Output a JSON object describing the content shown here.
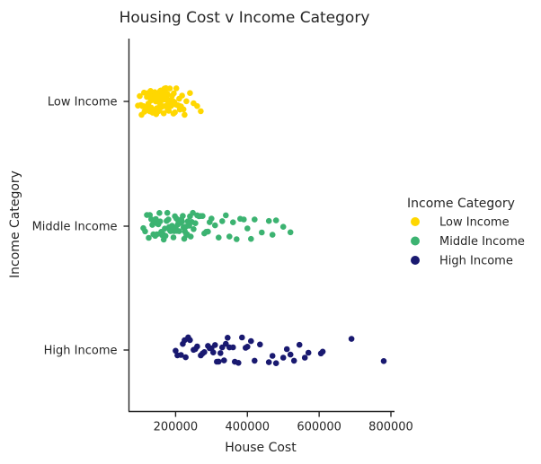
{
  "chart_data": {
    "type": "scatter",
    "title": "Housing Cost v Income Category",
    "xlabel": "House Cost",
    "ylabel": "Income Category",
    "xlim": [
      70000,
      810000
    ],
    "xticks": [
      200000,
      400000,
      600000,
      800000
    ],
    "xtick_labels": [
      "200000",
      "400000",
      "600000",
      "800000"
    ],
    "categories": [
      "Low Income",
      "Middle Income",
      "High Income"
    ],
    "grid": false,
    "legend": {
      "title": "Income Category",
      "placement": "right"
    },
    "series": [
      {
        "name": "Low Income",
        "color": "#FFD700",
        "category_index": 0,
        "x": [
          95000,
          100000,
          103000,
          105000,
          108000,
          110000,
          112000,
          113000,
          115000,
          117000,
          118000,
          120000,
          121000,
          122000,
          124000,
          125000,
          126000,
          127000,
          128000,
          129000,
          130000,
          131000,
          132000,
          133000,
          134000,
          135000,
          136000,
          137000,
          138000,
          139000,
          140000,
          141000,
          142000,
          143000,
          144000,
          145000,
          146000,
          147000,
          148000,
          149000,
          150000,
          151000,
          152000,
          153000,
          154000,
          155000,
          156000,
          157000,
          158000,
          159000,
          160000,
          161000,
          162000,
          163000,
          164000,
          165000,
          166000,
          167000,
          168000,
          169000,
          170000,
          171000,
          172000,
          173000,
          174000,
          175000,
          176000,
          177000,
          178000,
          179000,
          180000,
          181000,
          182000,
          183000,
          184000,
          185000,
          186000,
          187000,
          188000,
          190000,
          192000,
          194000,
          195000,
          196000,
          198000,
          200000,
          202000,
          205000,
          208000,
          210000,
          212000,
          215000,
          218000,
          222000,
          225000,
          230000,
          240000,
          250000,
          260000,
          270000
        ]
      },
      {
        "name": "Middle Income",
        "color": "#3CB371",
        "category_index": 1,
        "x": [
          110000,
          115000,
          120000,
          125000,
          128000,
          132000,
          135000,
          138000,
          140000,
          143000,
          145000,
          148000,
          150000,
          152000,
          155000,
          157000,
          160000,
          162000,
          165000,
          167000,
          170000,
          172000,
          175000,
          177000,
          180000,
          182000,
          184000,
          186000,
          188000,
          190000,
          192000,
          194000,
          196000,
          198000,
          200000,
          202000,
          204000,
          206000,
          208000,
          210000,
          212000,
          214000,
          216000,
          218000,
          220000,
          222000,
          224000,
          226000,
          228000,
          230000,
          232000,
          234000,
          236000,
          238000,
          240000,
          242000,
          245000,
          248000,
          250000,
          255000,
          260000,
          265000,
          270000,
          275000,
          280000,
          285000,
          290000,
          295000,
          300000,
          310000,
          320000,
          330000,
          340000,
          350000,
          360000,
          370000,
          380000,
          390000,
          400000,
          410000,
          420000,
          440000,
          460000,
          470000,
          480000,
          500000,
          520000
        ]
      },
      {
        "name": "High Income",
        "color": "#191970",
        "category_index": 2,
        "x": [
          200000,
          205000,
          215000,
          220000,
          225000,
          228000,
          235000,
          240000,
          250000,
          255000,
          260000,
          270000,
          275000,
          280000,
          290000,
          295000,
          300000,
          305000,
          310000,
          315000,
          320000,
          325000,
          330000,
          335000,
          340000,
          345000,
          350000,
          360000,
          365000,
          375000,
          385000,
          395000,
          400000,
          410000,
          420000,
          435000,
          460000,
          470000,
          480000,
          500000,
          510000,
          520000,
          530000,
          545000,
          560000,
          570000,
          605000,
          610000,
          690000,
          780000
        ]
      }
    ]
  }
}
